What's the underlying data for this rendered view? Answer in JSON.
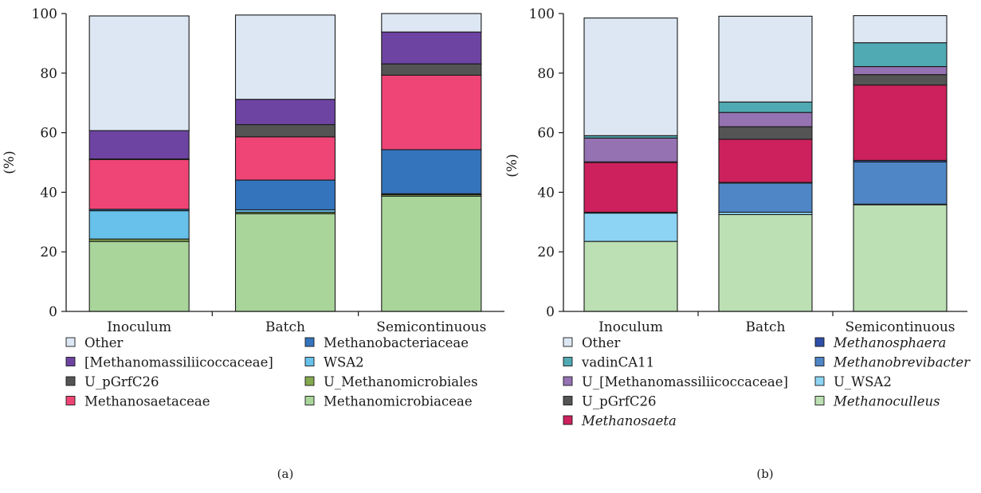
{
  "chart_data": [
    {
      "type": "bar",
      "stacked": true,
      "panel_label": "(a)",
      "title": "",
      "xlabel": "",
      "ylabel": "(%)",
      "ylim": [
        0,
        100
      ],
      "yticks": [
        "0",
        "20",
        "40",
        "60",
        "80",
        "100"
      ],
      "grid": false,
      "legend_position": "bottom",
      "categories": [
        "Inoculum",
        "Batch",
        "Semicontinuous"
      ],
      "series": [
        {
          "name": "Methanomicrobiaceae",
          "color": "#a9d59b",
          "values": [
            23.5,
            32.8,
            38.7
          ],
          "italic": false
        },
        {
          "name": "U_Methanomicrobiales",
          "color": "#85a94f",
          "values": [
            0.8,
            0.5,
            0.5
          ],
          "italic": false
        },
        {
          "name": "WSA2",
          "color": "#67c1ea",
          "values": [
            9.5,
            0.8,
            0.3
          ],
          "italic": false
        },
        {
          "name": "Methanobacteriaceae",
          "color": "#3474bd",
          "values": [
            0.5,
            10,
            14.8
          ],
          "italic": false
        },
        {
          "name": "Methanosaetaceae",
          "color": "#ef4576",
          "values": [
            16.7,
            14.5,
            25
          ],
          "italic": false
        },
        {
          "name": "U_pGrfC26",
          "color": "#545454",
          "values": [
            0.2,
            4.1,
            3.8
          ],
          "italic": false
        },
        {
          "name": "[Methanomassiliicoccaceae]",
          "color": "#6d44a2",
          "values": [
            9.5,
            8.5,
            10.7
          ],
          "italic": false
        },
        {
          "name": "Other",
          "color": "#dce7f3",
          "values": [
            38.5,
            28.3,
            6.2
          ],
          "italic": false
        }
      ],
      "legend_order": [
        "Other",
        "[Methanomassiliicoccaceae]",
        "U_pGrfC26",
        "Methanosaetaceae",
        "Methanobacteriaceae",
        "WSA2",
        "U_Methanomicrobiales",
        "Methanomicrobiaceae"
      ]
    },
    {
      "type": "bar",
      "stacked": true,
      "panel_label": "(b)",
      "title": "",
      "xlabel": "",
      "ylabel": "(%)",
      "ylim": [
        0,
        100
      ],
      "yticks": [
        "0",
        "20",
        "40",
        "60",
        "80",
        "100"
      ],
      "grid": false,
      "legend_position": "bottom",
      "categories": [
        "Inoculum",
        "Batch",
        "Semicontinuous"
      ],
      "series": [
        {
          "name": "Methanoculleus",
          "color": "#bcdfb3",
          "values": [
            23.5,
            32.5,
            35.8
          ],
          "italic": true
        },
        {
          "name": "U_WSA2",
          "color": "#8dd3f3",
          "values": [
            9.5,
            0.8,
            0.2
          ],
          "italic": false
        },
        {
          "name": "Methanobrevibacter",
          "color": "#4f86c6",
          "values": [
            0.3,
            9.8,
            14.2
          ],
          "italic": true
        },
        {
          "name": "Methanosphaera",
          "color": "#2e4fa8",
          "values": [
            0,
            0.2,
            0.5
          ],
          "italic": true
        },
        {
          "name": "Methanosaeta",
          "color": "#cc215d",
          "values": [
            16.7,
            14.5,
            25.3
          ],
          "italic": true
        },
        {
          "name": "U_pGrfC26",
          "color": "#545454",
          "values": [
            0.2,
            4.2,
            3.5
          ],
          "italic": false
        },
        {
          "name": "U_[Methanomassiliicoccaceae]",
          "color": "#9572b2",
          "values": [
            8,
            4.8,
            2.7
          ],
          "italic": false
        },
        {
          "name": "vadinCA11",
          "color": "#50aab3",
          "values": [
            0.8,
            3.5,
            8
          ],
          "italic": false
        },
        {
          "name": "Other",
          "color": "#dce7f3",
          "values": [
            39.5,
            28.8,
            9.1
          ],
          "italic": false
        }
      ],
      "legend_order": [
        "Other",
        "vadinCA11",
        "U_[Methanomassiliicoccaceae]",
        "U_pGrfC26",
        "Methanosaeta",
        "Methanosphaera",
        "Methanobrevibacter",
        "U_WSA2",
        "Methanoculleus"
      ]
    }
  ]
}
